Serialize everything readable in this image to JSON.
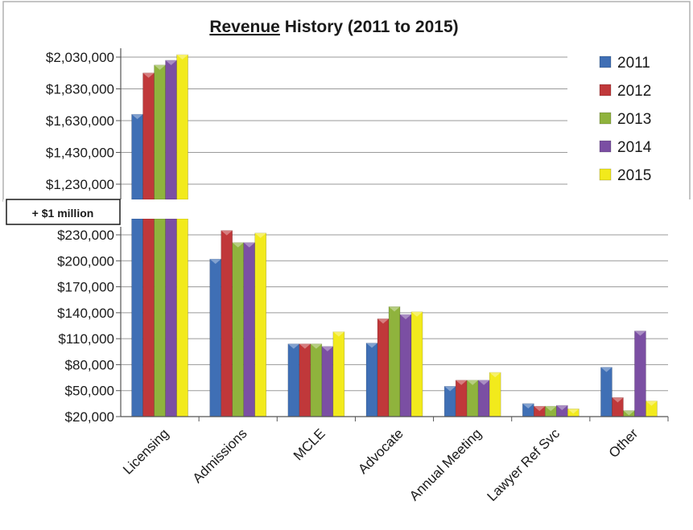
{
  "chart_data": {
    "type": "bar",
    "title_underlined": "Revenue",
    "title_rest": " History (2011 to 2015)",
    "xlabel": "",
    "ylabel": "",
    "axis_break_label": "+ $1 million",
    "categories": [
      "Licensing",
      "Admissions",
      "MCLE",
      "Advocate",
      "Annual Meeting",
      "Lawyer Ref Svc",
      "Other"
    ],
    "series": [
      {
        "name": "2011",
        "color": "#3f6fb5",
        "values": [
          1670000,
          202000,
          104000,
          105000,
          55000,
          35000,
          77000
        ]
      },
      {
        "name": "2012",
        "color": "#c0383a",
        "values": [
          1930000,
          235000,
          104000,
          133000,
          62000,
          32000,
          42000
        ]
      },
      {
        "name": "2013",
        "color": "#8fb33d",
        "values": [
          1980000,
          221000,
          104000,
          147000,
          62000,
          32000,
          27000
        ]
      },
      {
        "name": "2014",
        "color": "#7b4fa3",
        "values": [
          2010000,
          221000,
          101000,
          138000,
          62000,
          33000,
          119000
        ]
      },
      {
        "name": "2015",
        "color": "#f2ea1c",
        "values": [
          2045000,
          232000,
          118000,
          141000,
          71000,
          29000,
          38000
        ]
      }
    ],
    "y_ticks_upper": [
      "$2,030,000",
      "$1,830,000",
      "$1,630,000",
      "$1,430,000",
      "$1,230,000"
    ],
    "y_ticks_lower": [
      "$230,000",
      "$200,000",
      "$170,000",
      "$140,000",
      "$110,000",
      "$80,000",
      "$50,000",
      "$20,000"
    ],
    "upper_range": [
      1230000,
      2030000
    ],
    "lower_range": [
      20000,
      230000
    ],
    "grid": true,
    "legend_position": "right"
  }
}
